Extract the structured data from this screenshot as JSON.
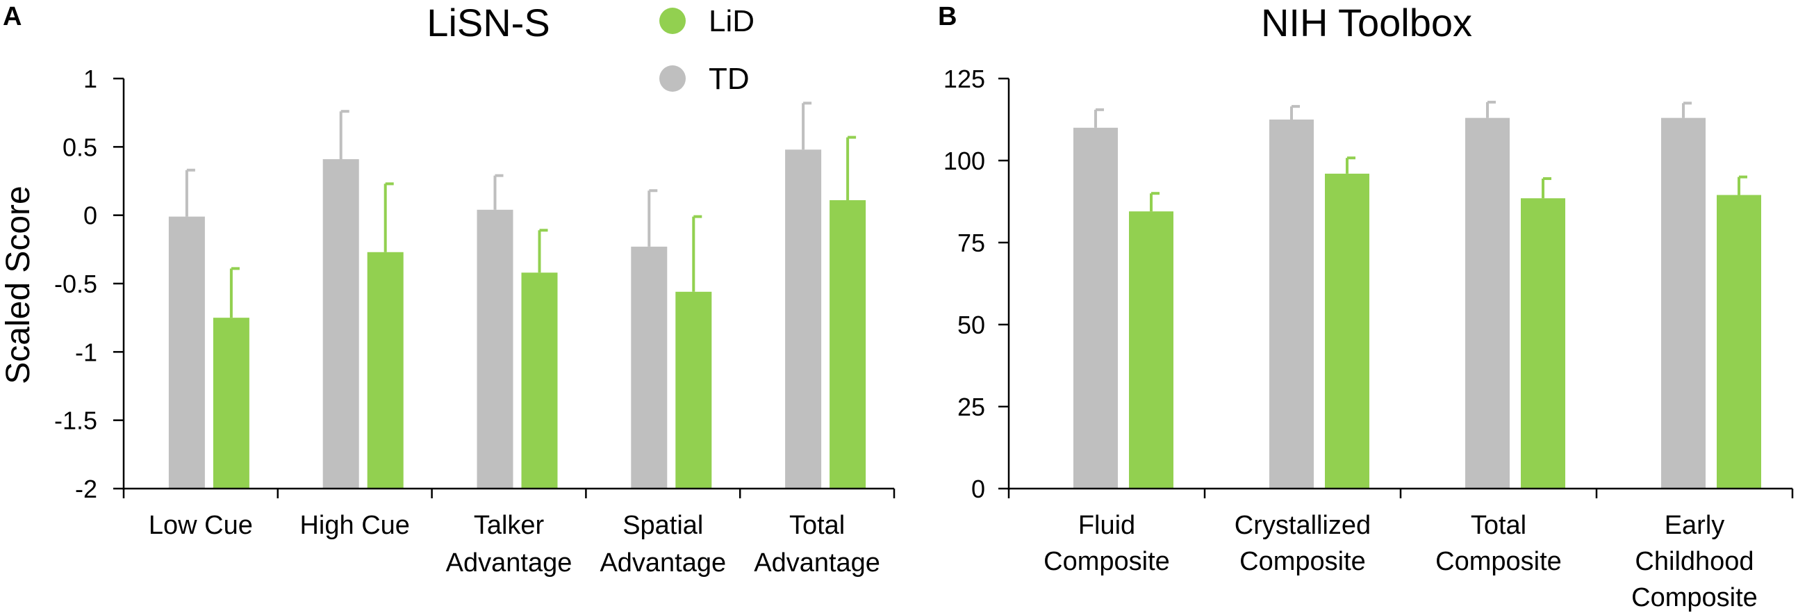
{
  "legend": [
    {
      "name": "LiD",
      "color": "#92d050"
    },
    {
      "name": "TD",
      "color": "#bfbfbf"
    }
  ],
  "colors": {
    "lid": "#92d050",
    "td": "#bfbfbf",
    "axis": "#000000"
  },
  "chart_data": [
    {
      "panel_label": "A",
      "type": "bar",
      "title": "LiSN-S",
      "ylabel": "Scaled Score",
      "xlabel": "",
      "ylim": [
        -2,
        1
      ],
      "yticks": [
        1,
        0.5,
        0,
        -0.5,
        -1,
        -1.5,
        -2
      ],
      "ytick_labels": [
        "1",
        "0.5",
        "0",
        "-0.5",
        "-1",
        "-1.5",
        "-2"
      ],
      "baseline": -2,
      "categories": [
        {
          "lines": [
            "Low Cue"
          ]
        },
        {
          "lines": [
            "High Cue"
          ]
        },
        {
          "lines": [
            "Talker",
            "Advantage"
          ]
        },
        {
          "lines": [
            "Spatial",
            "Advantage"
          ]
        },
        {
          "lines": [
            "Total",
            "Advantage"
          ]
        }
      ],
      "series": [
        {
          "name": "TD",
          "color": "#bfbfbf",
          "values": [
            -0.01,
            0.41,
            0.04,
            -0.23,
            0.48
          ],
          "errors": [
            0.34,
            0.35,
            0.25,
            0.41,
            0.34
          ]
        },
        {
          "name": "LiD",
          "color": "#92d050",
          "values": [
            -0.75,
            -0.27,
            -0.42,
            -0.56,
            0.11
          ],
          "errors": [
            0.36,
            0.5,
            0.31,
            0.55,
            0.46
          ]
        }
      ]
    },
    {
      "panel_label": "B",
      "type": "bar",
      "title": "NIH Toolbox",
      "ylabel": "",
      "xlabel": "",
      "ylim": [
        0,
        125
      ],
      "yticks": [
        125,
        100,
        75,
        50,
        25,
        0
      ],
      "ytick_labels": [
        "125",
        "100",
        "75",
        "50",
        "25",
        "0"
      ],
      "baseline": 0,
      "categories": [
        {
          "lines": [
            "Fluid",
            "Composite"
          ]
        },
        {
          "lines": [
            "Crystallized",
            "Composite"
          ]
        },
        {
          "lines": [
            "Total",
            "Composite"
          ]
        },
        {
          "lines": [
            "Early",
            "Childhood",
            "Composite"
          ]
        }
      ],
      "series": [
        {
          "name": "TD",
          "color": "#bfbfbf",
          "values": [
            110,
            112.5,
            113,
            113
          ],
          "errors": [
            5.5,
            4,
            4.8,
            4.5
          ]
        },
        {
          "name": "LiD",
          "color": "#92d050",
          "values": [
            84.5,
            96,
            88.5,
            89.5
          ],
          "errors": [
            5.5,
            4.8,
            6,
            5.5
          ]
        }
      ]
    }
  ]
}
